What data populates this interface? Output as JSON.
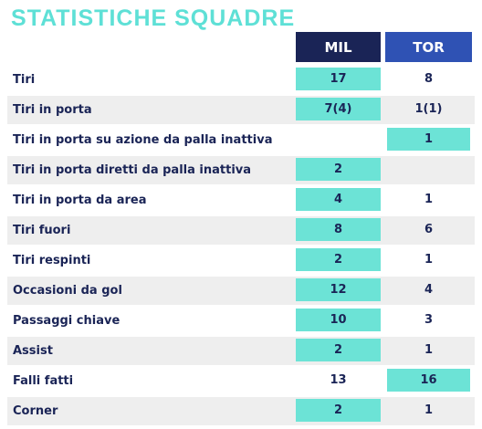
{
  "title": "STATISTICHE SQUADRE",
  "teams": {
    "home": "MIL",
    "away": "TOR"
  },
  "colors": {
    "highlight": "#6ce3d6",
    "home_header": "#1a2456",
    "away_header": "#2f52b4",
    "title": "#5ee0d6"
  },
  "rows": [
    {
      "label": "Tiri",
      "mil": "17",
      "tor": "8",
      "leader": "mil"
    },
    {
      "label": "Tiri in porta",
      "mil": "7(4)",
      "tor": "1(1)",
      "leader": "mil"
    },
    {
      "label": "Tiri in porta su azione da palla inattiva",
      "mil": "",
      "tor": "1",
      "leader": "tor"
    },
    {
      "label": "Tiri in porta diretti da palla inattiva",
      "mil": "2",
      "tor": "",
      "leader": "mil"
    },
    {
      "label": "Tiri in porta da area",
      "mil": "4",
      "tor": "1",
      "leader": "mil"
    },
    {
      "label": "Tiri fuori",
      "mil": "8",
      "tor": "6",
      "leader": "mil"
    },
    {
      "label": "Tiri respinti",
      "mil": "2",
      "tor": "1",
      "leader": "mil"
    },
    {
      "label": "Occasioni da gol",
      "mil": "12",
      "tor": "4",
      "leader": "mil"
    },
    {
      "label": "Passaggi chiave",
      "mil": "10",
      "tor": "3",
      "leader": "mil"
    },
    {
      "label": "Assist",
      "mil": "2",
      "tor": "1",
      "leader": "mil"
    },
    {
      "label": "Falli fatti",
      "mil": "13",
      "tor": "16",
      "leader": "tor"
    },
    {
      "label": "Corner",
      "mil": "2",
      "tor": "1",
      "leader": "mil"
    }
  ]
}
